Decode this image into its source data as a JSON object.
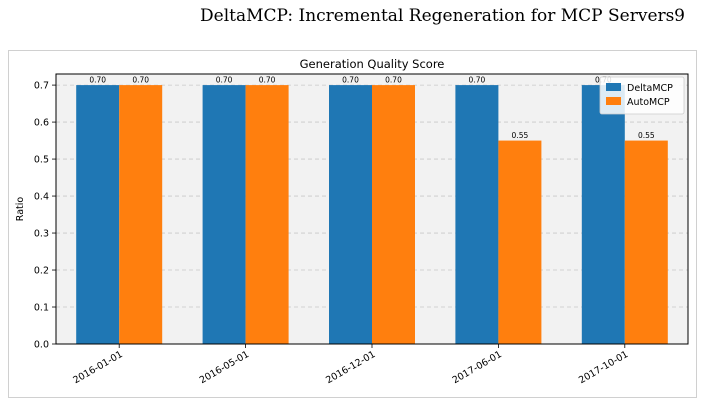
{
  "header": {
    "running_title": "DeltaMCP: Incremental Regeneration for MCP Servers",
    "page_number": "9"
  },
  "chart_data": {
    "type": "bar",
    "title": "Generation Quality Score",
    "xlabel": "",
    "ylabel": "Ratio",
    "categories": [
      "2016-01-01",
      "2016-05-01",
      "2016-12-01",
      "2017-06-01",
      "2017-10-01"
    ],
    "series": [
      {
        "name": "DeltaMCP",
        "values": [
          0.7,
          0.7,
          0.7,
          0.7,
          0.7
        ],
        "labels": [
          "0.70",
          "0.70",
          "0.70",
          "0.70",
          "0.70"
        ],
        "color": "#1f77b4"
      },
      {
        "name": "AutoMCP",
        "values": [
          0.7,
          0.7,
          0.7,
          0.55,
          0.55
        ],
        "labels": [
          "0.70",
          "0.70",
          "0.70",
          "0.55",
          "0.55"
        ],
        "color": "#ff7f0e"
      }
    ],
    "ylim": [
      0,
      0.73
    ],
    "yticks": [
      "0.0",
      "0.1",
      "0.2",
      "0.3",
      "0.4",
      "0.5",
      "0.6",
      "0.7"
    ],
    "grid": true,
    "legend_position": "top-right",
    "background_color": "#f2f2f2"
  }
}
